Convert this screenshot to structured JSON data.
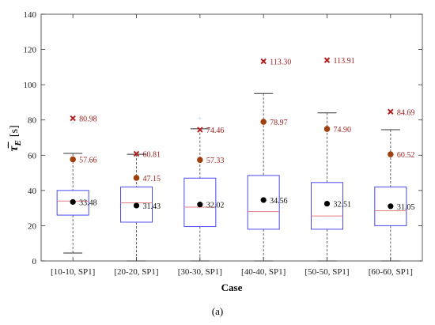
{
  "chart_data": {
    "type": "box",
    "xlabel": "Case",
    "ylabel": "τ̅E [s]",
    "ylabel_parts": {
      "symbol": "τ̅",
      "subscript": "E",
      "unit": "[s]"
    },
    "ylim": [
      0,
      140
    ],
    "yticks": [
      0,
      20,
      40,
      60,
      80,
      100,
      120,
      140
    ],
    "grid": false,
    "legend": "none",
    "caption": "(a)",
    "categories": [
      "[10-10, SP1]",
      "[20-20, SP1]",
      "[30-30, SP1]",
      "[40-40, SP1]",
      "[50-50, SP1]",
      "[60-60, SP1]"
    ],
    "boxes": [
      {
        "category": "[10-10, SP1]",
        "whisker_low": 4.5,
        "q1": 26,
        "median": 34,
        "q3": 40,
        "whisker_high": 61,
        "mean": 33.48,
        "mean_label": "33.48",
        "upper_point": 57.66,
        "upper_label": "57.66",
        "max": 80.98,
        "max_label": "80.98",
        "outliers": [
          78
        ]
      },
      {
        "category": "[20-20, SP1]",
        "whisker_low": 0,
        "q1": 22,
        "median": 33,
        "q3": 42,
        "whisker_high": 60.5,
        "mean": 31.43,
        "mean_label": "31.43",
        "upper_point": 47.15,
        "upper_label": "47.15",
        "max": 60.81,
        "max_label": "60.81",
        "outliers": []
      },
      {
        "category": "[30-30, SP1]",
        "whisker_low": 0,
        "q1": 19.5,
        "median": 30.5,
        "q3": 47,
        "whisker_high": 75,
        "mean": 32.02,
        "mean_label": "32.02",
        "upper_point": 57.33,
        "upper_label": "57.33",
        "max": 74.46,
        "max_label": "74.46",
        "outliers": [
          81
        ]
      },
      {
        "category": "[40-40, SP1]",
        "whisker_low": 0,
        "q1": 18,
        "median": 28,
        "q3": 48.5,
        "whisker_high": 95,
        "mean": 34.56,
        "mean_label": "34.56",
        "upper_point": 78.97,
        "upper_label": "78.97",
        "max": 113.3,
        "max_label": "113.30",
        "outliers": []
      },
      {
        "category": "[50-50, SP1]",
        "whisker_low": 0,
        "q1": 18,
        "median": 25.5,
        "q3": 44.5,
        "whisker_high": 84,
        "mean": 32.51,
        "mean_label": "32.51",
        "upper_point": 74.9,
        "upper_label": "74.90",
        "max": 113.91,
        "max_label": "113.91",
        "outliers": []
      },
      {
        "category": "[60-60, SP1]",
        "whisker_low": 0,
        "q1": 20,
        "median": 28.5,
        "q3": 42,
        "whisker_high": 74.5,
        "mean": 31.05,
        "mean_label": "31.05",
        "upper_point": 60.52,
        "upper_label": "60.52",
        "max": 84.69,
        "max_label": "84.69",
        "outliers": []
      }
    ],
    "colors": {
      "box": "#4a4af0",
      "median": "#e08080",
      "whisker": "#555555",
      "mean_marker": "#000000",
      "upper_marker": "#a0400f",
      "max_marker": "#b22222",
      "annotation": "#9b1c1c",
      "outlier": "#9ad4f0"
    }
  }
}
